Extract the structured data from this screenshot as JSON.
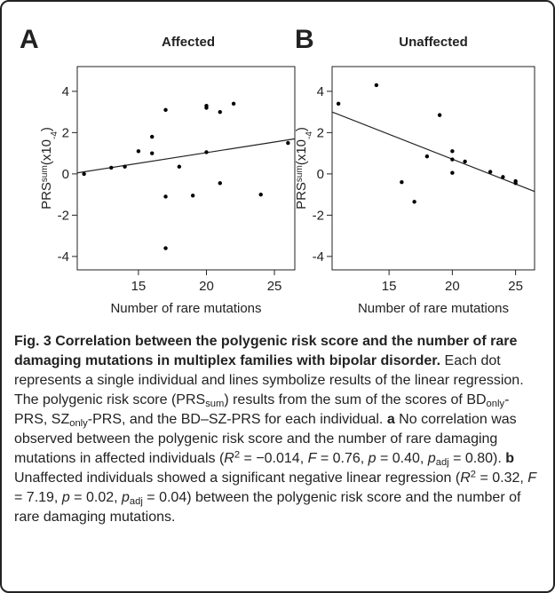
{
  "chart_data": [
    {
      "type": "scatter",
      "panel": "A",
      "title": "Affected",
      "xlabel": "Number of rare mutations",
      "ylabel": [
        "PRS",
        "sum",
        "(x10",
        "-4",
        ")"
      ],
      "x": [
        11,
        13,
        14,
        15,
        16,
        16,
        17,
        17,
        17,
        18,
        19,
        20,
        20,
        20,
        21,
        21,
        22,
        24,
        26
      ],
      "y": [
        0,
        0.3,
        0.35,
        1.1,
        1.8,
        1.0,
        3.1,
        -1.1,
        -3.6,
        0.35,
        -1.05,
        3.3,
        3.2,
        1.05,
        3.0,
        -0.45,
        3.4,
        -1.0,
        1.5
      ],
      "color": "#000000",
      "regression": {
        "x": [
          10.5,
          26.5
        ],
        "y": [
          0.05,
          1.7
        ]
      },
      "xlim": [
        10.5,
        26.5
      ],
      "xticks": [
        15,
        20,
        25
      ],
      "ylim": [
        -4.65,
        5.2
      ],
      "yticks": [
        -4,
        -2,
        0,
        2,
        4
      ]
    },
    {
      "type": "scatter",
      "panel": "B",
      "title": "Unaffected",
      "xlabel": "Number of rare mutations",
      "ylabel": [
        "PRS",
        "sum",
        "(x10",
        "-4",
        ")"
      ],
      "x": [
        11,
        14,
        16,
        17,
        18,
        19,
        20,
        20,
        20,
        21,
        23,
        24,
        25,
        25
      ],
      "y": [
        3.4,
        4.3,
        -0.4,
        -1.35,
        0.85,
        2.85,
        1.1,
        0.7,
        0.05,
        0.6,
        0.1,
        -0.15,
        -0.35,
        -0.45
      ],
      "color": "#000000",
      "regression": {
        "x": [
          10.5,
          26.5
        ],
        "y": [
          3.0,
          -0.85
        ]
      },
      "xlim": [
        10.5,
        26.5
      ],
      "xticks": [
        15,
        20,
        25
      ],
      "ylim": [
        -4.65,
        5.2
      ],
      "yticks": [
        -4,
        -2,
        0,
        2,
        4
      ]
    }
  ],
  "caption": [
    {
      "text": "Fig. 3 Correlation between the polygenic risk score and the number of rare damaging mutations in multiplex families with bipolar disorder.",
      "style": "bold"
    },
    {
      "text": " Each dot represents a single individual and lines symbolize results of the linear regression. The polygenic risk score (PRS"
    },
    {
      "text": "sum",
      "style": "sub"
    },
    {
      "text": ") results from the sum of the scores of BD"
    },
    {
      "text": "only",
      "style": "sub"
    },
    {
      "text": "-PRS, SZ"
    },
    {
      "text": "only",
      "style": "sub"
    },
    {
      "text": "-PRS, and the BD–SZ-PRS for each individual. "
    },
    {
      "text": "a",
      "style": "bold"
    },
    {
      "text": " No correlation was observed between the polygenic risk score and the number of rare damaging mutations in affected individuals ("
    },
    {
      "text": "R",
      "style": "italic"
    },
    {
      "text": "2",
      "style": "sup"
    },
    {
      "text": " = −0.014, "
    },
    {
      "text": "F",
      "style": "italic"
    },
    {
      "text": " = 0.76, "
    },
    {
      "text": "p",
      "style": "italic"
    },
    {
      "text": " = 0.40, "
    },
    {
      "text": "p",
      "style": "italic"
    },
    {
      "text": "adj",
      "style": "sub"
    },
    {
      "text": " = 0.80). "
    },
    {
      "text": "b",
      "style": "bold"
    },
    {
      "text": " Unaffected individuals showed a significant negative linear regression ("
    },
    {
      "text": "R",
      "style": "italic"
    },
    {
      "text": "2",
      "style": "sup"
    },
    {
      "text": " = 0.32, "
    },
    {
      "text": "F",
      "style": "italic"
    },
    {
      "text": " = 7.19, "
    },
    {
      "text": "p",
      "style": "italic"
    },
    {
      "text": " = 0.02, "
    },
    {
      "text": "p",
      "style": "italic"
    },
    {
      "text": "adj",
      "style": "sub"
    },
    {
      "text": " = 0.04) between the polygenic risk score and the number of rare damaging mutations."
    }
  ]
}
